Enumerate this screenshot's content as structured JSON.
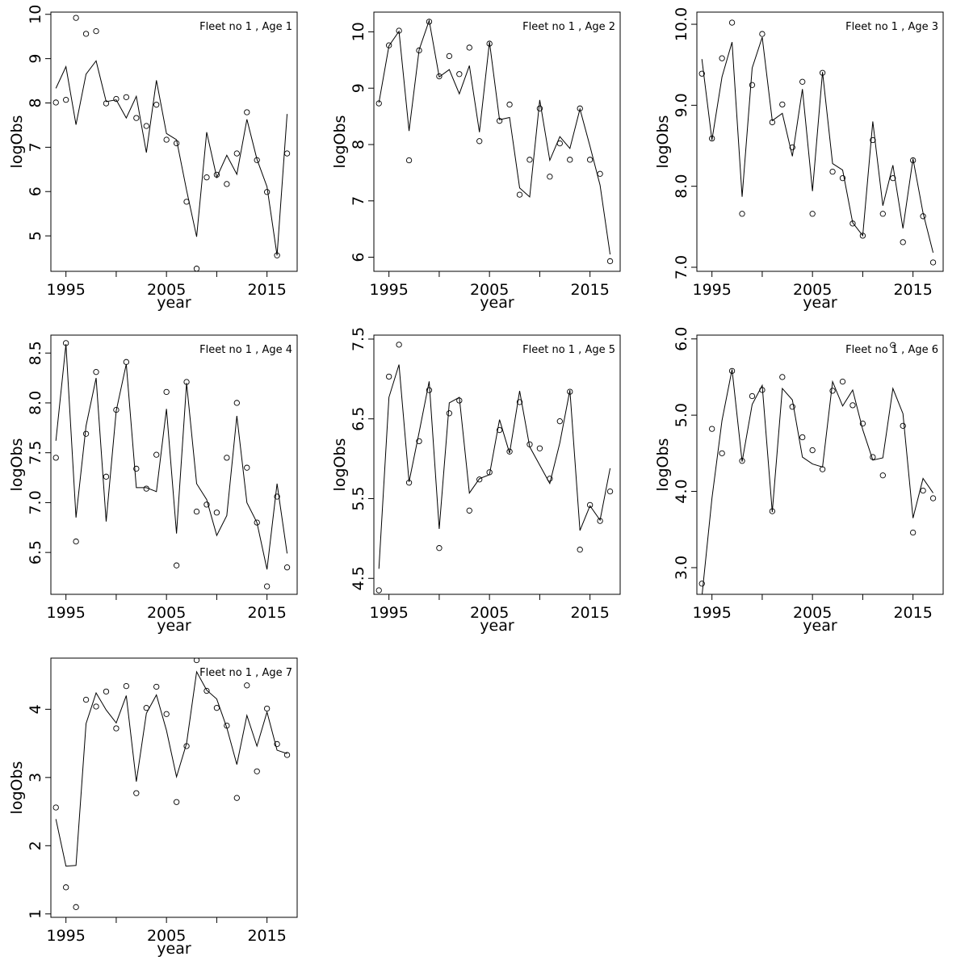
{
  "figure": {
    "xlabel": "year",
    "ylabel": "logObs"
  },
  "chart_data": [
    {
      "type": "line",
      "title": "Fleet no 1 , Age 1",
      "xlabel": "year",
      "ylabel": "logObs",
      "xlim": [
        1993.5,
        2018
      ],
      "ylim": [
        4.2,
        10.05
      ],
      "xticks": [
        1995,
        2005,
        2015
      ],
      "yticks": [
        5,
        6,
        7,
        8,
        9,
        10
      ],
      "yticklabels": [
        "5",
        "6",
        "7",
        "8",
        "9",
        "10"
      ],
      "x": [
        1994,
        1995,
        1996,
        1997,
        1998,
        1999,
        2000,
        2001,
        2002,
        2003,
        2004,
        2005,
        2006,
        2007,
        2008,
        2009,
        2010,
        2011,
        2012,
        2013,
        2014,
        2015,
        2016,
        2017
      ],
      "series": [
        {
          "style": "points",
          "values": [
            8.01,
            8.07,
            9.92,
            9.56,
            9.62,
            7.99,
            8.09,
            8.13,
            7.66,
            7.48,
            7.96,
            7.17,
            7.09,
            5.77,
            4.26,
            6.32,
            6.38,
            6.17,
            6.86,
            7.79,
            6.71,
            5.99,
            4.56,
            6.86
          ]
        },
        {
          "style": "line",
          "values": [
            8.33,
            8.82,
            7.51,
            8.65,
            8.95,
            8.03,
            8.07,
            7.66,
            8.15,
            6.88,
            8.51,
            7.31,
            7.17,
            6.03,
            4.98,
            7.34,
            6.32,
            6.82,
            6.39,
            7.63,
            6.73,
            6.11,
            4.56,
            7.75
          ]
        }
      ]
    },
    {
      "type": "line",
      "title": "Fleet no 1 , Age 2",
      "xlabel": "year",
      "ylabel": "logObs",
      "xlim": [
        1993.5,
        2018
      ],
      "ylim": [
        5.75,
        10.35
      ],
      "xticks": [
        1995,
        2005,
        2015
      ],
      "yticks": [
        6,
        7,
        8,
        9,
        10
      ],
      "yticklabels": [
        "6",
        "7",
        "8",
        "9",
        "10"
      ],
      "x": [
        1994,
        1995,
        1996,
        1997,
        1998,
        1999,
        2000,
        2001,
        2002,
        2003,
        2004,
        2005,
        2006,
        2007,
        2008,
        2009,
        2010,
        2011,
        2012,
        2013,
        2014,
        2015,
        2016,
        2017
      ],
      "series": [
        {
          "style": "points",
          "values": [
            8.73,
            9.76,
            10.02,
            7.72,
            9.67,
            10.18,
            9.21,
            9.57,
            9.25,
            9.72,
            8.06,
            9.79,
            8.42,
            8.71,
            7.11,
            7.73,
            8.64,
            7.43,
            8.02,
            7.73,
            8.64,
            7.73,
            7.48,
            5.93
          ]
        },
        {
          "style": "line",
          "values": [
            8.74,
            9.75,
            10.01,
            8.24,
            9.68,
            10.2,
            9.2,
            9.33,
            8.9,
            9.4,
            8.22,
            9.82,
            8.44,
            8.48,
            7.23,
            7.07,
            8.79,
            7.72,
            8.14,
            7.93,
            8.63,
            7.97,
            7.28,
            6.05
          ]
        }
      ]
    },
    {
      "type": "line",
      "title": "Fleet no 1 , Age 3",
      "xlabel": "year",
      "ylabel": "logObs",
      "xlim": [
        1993.5,
        2018
      ],
      "ylim": [
        6.95,
        10.15
      ],
      "xticks": [
        1995,
        2005,
        2015
      ],
      "yticks": [
        7,
        8,
        9,
        10
      ],
      "yticklabels": [
        "7.0",
        "8.0",
        "9.0",
        "10.0"
      ],
      "x": [
        1994,
        1995,
        1996,
        1997,
        1998,
        1999,
        2000,
        2001,
        2002,
        2003,
        2004,
        2005,
        2006,
        2007,
        2008,
        2009,
        2010,
        2011,
        2012,
        2013,
        2014,
        2015,
        2016,
        2017
      ],
      "series": [
        {
          "style": "points",
          "values": [
            9.39,
            8.59,
            9.58,
            10.02,
            7.66,
            9.25,
            9.88,
            8.79,
            9.01,
            8.48,
            9.29,
            7.66,
            9.4,
            8.18,
            8.1,
            7.54,
            7.39,
            8.57,
            7.66,
            8.1,
            7.31,
            8.32,
            7.63,
            7.06
          ]
        },
        {
          "style": "line",
          "values": [
            9.57,
            8.57,
            9.35,
            9.78,
            7.87,
            9.46,
            9.84,
            8.81,
            8.9,
            8.37,
            9.2,
            7.94,
            9.41,
            8.28,
            8.2,
            7.55,
            7.39,
            8.8,
            7.76,
            8.26,
            7.48,
            8.34,
            7.67,
            7.18
          ]
        }
      ]
    },
    {
      "type": "line",
      "title": "Fleet no 1 , Age 4",
      "xlabel": "year",
      "ylabel": "logObs",
      "xlim": [
        1993.5,
        2018
      ],
      "ylim": [
        6.08,
        8.68
      ],
      "xticks": [
        1995,
        2005,
        2015
      ],
      "yticks": [
        6.5,
        7,
        7.5,
        8,
        8.5
      ],
      "yticklabels": [
        "6.5",
        "7.0",
        "7.5",
        "8.0",
        "8.5"
      ],
      "x": [
        1994,
        1995,
        1996,
        1997,
        1998,
        1999,
        2000,
        2001,
        2002,
        2003,
        2004,
        2005,
        2006,
        2007,
        2008,
        2009,
        2010,
        2011,
        2012,
        2013,
        2014,
        2015,
        2016,
        2017
      ],
      "series": [
        {
          "style": "points",
          "values": [
            7.45,
            8.6,
            6.61,
            7.69,
            8.31,
            7.26,
            7.93,
            8.41,
            7.34,
            7.14,
            7.48,
            8.11,
            6.37,
            8.21,
            6.91,
            6.98,
            6.9,
            7.45,
            8.0,
            7.35,
            6.8,
            6.16,
            7.06,
            6.35
          ]
        },
        {
          "style": "line",
          "values": [
            7.62,
            8.59,
            6.85,
            7.77,
            8.25,
            6.81,
            7.92,
            8.39,
            7.15,
            7.15,
            7.11,
            7.94,
            6.69,
            8.2,
            7.19,
            7.03,
            6.67,
            6.87,
            7.87,
            7.0,
            6.8,
            6.33,
            7.19,
            6.49
          ]
        }
      ]
    },
    {
      "type": "line",
      "title": "Fleet no 1 , Age 5",
      "xlabel": "year",
      "ylabel": "logObs",
      "xlim": [
        1993.5,
        2018
      ],
      "ylim": [
        4.3,
        7.55
      ],
      "xticks": [
        1995,
        2005,
        2015
      ],
      "yticks": [
        4.5,
        5.5,
        6.5,
        7.5
      ],
      "yticklabels": [
        "4.5",
        "5.5",
        "6.5",
        "7.5"
      ],
      "x": [
        1994,
        1995,
        1996,
        1997,
        1998,
        1999,
        2000,
        2001,
        2002,
        2003,
        2004,
        2005,
        2006,
        2007,
        2008,
        2009,
        2010,
        2011,
        2012,
        2013,
        2014,
        2015,
        2016,
        2017
      ],
      "series": [
        {
          "style": "points",
          "values": [
            4.35,
            7.03,
            7.43,
            5.7,
            6.22,
            6.86,
            4.88,
            6.57,
            6.73,
            5.35,
            5.74,
            5.83,
            6.36,
            6.09,
            6.71,
            6.18,
            6.13,
            5.75,
            6.47,
            6.84,
            4.86,
            5.42,
            5.22,
            5.59
          ]
        },
        {
          "style": "line",
          "values": [
            4.62,
            6.77,
            7.18,
            5.71,
            6.33,
            6.97,
            5.12,
            6.7,
            6.77,
            5.57,
            5.75,
            5.8,
            6.49,
            6.07,
            6.85,
            6.15,
            5.92,
            5.69,
            6.2,
            6.86,
            5.1,
            5.41,
            5.23,
            5.88
          ]
        }
      ]
    },
    {
      "type": "line",
      "title": "Fleet no 1 , Age 6",
      "xlabel": "year",
      "ylabel": "logObs",
      "xlim": [
        1993.5,
        2018
      ],
      "ylim": [
        2.65,
        6.05
      ],
      "xticks": [
        1995,
        2005,
        2015
      ],
      "yticks": [
        3,
        4,
        5,
        6
      ],
      "yticklabels": [
        "3.0",
        "4.0",
        "5.0",
        "6.0"
      ],
      "x": [
        1994,
        1995,
        1996,
        1997,
        1998,
        1999,
        2000,
        2001,
        2002,
        2003,
        2004,
        2005,
        2006,
        2007,
        2008,
        2009,
        2010,
        2011,
        2012,
        2013,
        2014,
        2015,
        2016,
        2017
      ],
      "series": [
        {
          "style": "points",
          "values": [
            2.79,
            4.82,
            4.5,
            5.58,
            4.4,
            5.25,
            5.33,
            3.74,
            5.5,
            5.11,
            4.71,
            4.54,
            4.29,
            5.32,
            5.44,
            5.13,
            4.89,
            4.45,
            4.21,
            5.92,
            4.86,
            3.46,
            4.01,
            3.91
          ]
        },
        {
          "style": "line",
          "values": [
            2.62,
            3.91,
            4.93,
            5.6,
            4.39,
            5.14,
            5.39,
            3.73,
            5.35,
            5.2,
            4.45,
            4.36,
            4.32,
            5.44,
            5.12,
            5.33,
            4.81,
            4.41,
            4.44,
            5.35,
            5.02,
            3.65,
            4.17,
            3.98
          ]
        }
      ]
    },
    {
      "type": "line",
      "title": "Fleet no 1 , Age 7",
      "xlabel": "year",
      "ylabel": "logObs",
      "xlim": [
        1993.5,
        2018
      ],
      "ylim": [
        0.95,
        4.75
      ],
      "xticks": [
        1995,
        2005,
        2015
      ],
      "yticks": [
        1,
        2,
        3,
        4
      ],
      "yticklabels": [
        "1",
        "2",
        "3",
        "4"
      ],
      "x": [
        1994,
        1995,
        1996,
        1997,
        1998,
        1999,
        2000,
        2001,
        2002,
        2003,
        2004,
        2005,
        2006,
        2007,
        2008,
        2009,
        2010,
        2011,
        2012,
        2013,
        2014,
        2015,
        2016,
        2017
      ],
      "series": [
        {
          "style": "points",
          "values": [
            2.56,
            1.39,
            1.1,
            4.14,
            4.04,
            4.26,
            3.72,
            4.34,
            2.77,
            4.02,
            4.33,
            3.93,
            2.64,
            3.46,
            4.72,
            4.27,
            4.02,
            3.76,
            2.7,
            4.35,
            3.09,
            4.01,
            3.49,
            3.33
          ]
        },
        {
          "style": "line",
          "values": [
            2.39,
            1.7,
            1.71,
            3.79,
            4.24,
            3.99,
            3.8,
            4.2,
            2.94,
            3.94,
            4.21,
            3.69,
            3.01,
            3.5,
            4.55,
            4.28,
            4.15,
            3.73,
            3.19,
            3.91,
            3.46,
            3.96,
            3.4,
            3.35
          ]
        }
      ]
    }
  ]
}
